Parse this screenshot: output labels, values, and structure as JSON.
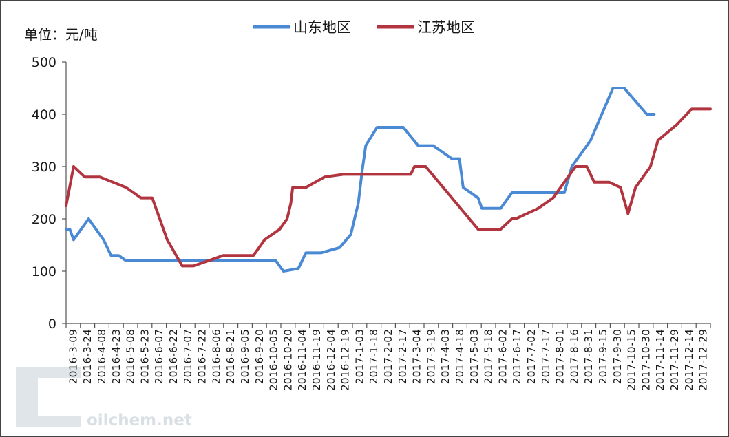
{
  "chart_data": {
    "type": "line",
    "ylabel": "单位：元/吨",
    "ylim": [
      0,
      500
    ],
    "y_ticks": [
      0,
      100,
      200,
      300,
      400,
      500
    ],
    "grid": false,
    "legend_position": "top-center",
    "x_tick_labels": [
      "2016-3-09",
      "2016-3-24",
      "2016-4-08",
      "2016-4-23",
      "2016-5-08",
      "2016-5-23",
      "2016-6-07",
      "2016-6-22",
      "2016-7-07",
      "2016-7-22",
      "2016-8-06",
      "2016-8-21",
      "2016-9-05",
      "2016-9-20",
      "2016-10-05",
      "2016-10-20",
      "2016-11-04",
      "2016-11-19",
      "2016-12-04",
      "2016-12-19",
      "2017-1-03",
      "2017-1-18",
      "2017-2-02",
      "2017-2-17",
      "2017-3-04",
      "2017-3-19",
      "2017-4-03",
      "2017-4-18",
      "2017-5-03",
      "2017-5-18",
      "2017-6-02",
      "2017-6-17",
      "2017-7-02",
      "2017-7-17",
      "2017-8-01",
      "2017-8-16",
      "2017-8-31",
      "2017-9-15",
      "2017-9-30",
      "2017-10-15",
      "2017-10-30",
      "2017-11-14",
      "2017-11-29",
      "2017-12-14",
      "2017-12-29"
    ],
    "series": [
      {
        "name": "山东地区",
        "color": "#4a8ad4",
        "points": [
          [
            0,
            180
          ],
          [
            1,
            180
          ],
          [
            2,
            160
          ],
          [
            4,
            180
          ],
          [
            6,
            200
          ],
          [
            8,
            180
          ],
          [
            10,
            160
          ],
          [
            12,
            130
          ],
          [
            14,
            130
          ],
          [
            16,
            120
          ],
          [
            22,
            120
          ],
          [
            26,
            120
          ],
          [
            30,
            120
          ],
          [
            36,
            120
          ],
          [
            44,
            120
          ],
          [
            48,
            120
          ],
          [
            52,
            120
          ],
          [
            56,
            120
          ],
          [
            58,
            100
          ],
          [
            62,
            105
          ],
          [
            64,
            135
          ],
          [
            68,
            135
          ],
          [
            73,
            145
          ],
          [
            76,
            170
          ],
          [
            78,
            230
          ],
          [
            79,
            290
          ],
          [
            80,
            340
          ],
          [
            83,
            375
          ],
          [
            86,
            375
          ],
          [
            90,
            375
          ],
          [
            94,
            340
          ],
          [
            98,
            340
          ],
          [
            103,
            315
          ],
          [
            105,
            315
          ],
          [
            106,
            260
          ],
          [
            109,
            245
          ],
          [
            110,
            240
          ],
          [
            111,
            220
          ],
          [
            116,
            220
          ],
          [
            119,
            250
          ],
          [
            125,
            250
          ],
          [
            133,
            250
          ],
          [
            135,
            300
          ],
          [
            140,
            350
          ],
          [
            146,
            450
          ],
          [
            149,
            450
          ],
          [
            155,
            400
          ],
          [
            157,
            400
          ]
        ]
      },
      {
        "name": "江苏地区",
        "color": "#b2343f",
        "points": [
          [
            0,
            225
          ],
          [
            2,
            300
          ],
          [
            5,
            280
          ],
          [
            9,
            280
          ],
          [
            16,
            260
          ],
          [
            20,
            240
          ],
          [
            23,
            240
          ],
          [
            27,
            160
          ],
          [
            31,
            110
          ],
          [
            34,
            110
          ],
          [
            42,
            130
          ],
          [
            50,
            130
          ],
          [
            53,
            160
          ],
          [
            57,
            180
          ],
          [
            59,
            200
          ],
          [
            60,
            230
          ],
          [
            60.5,
            260
          ],
          [
            64,
            260
          ],
          [
            69,
            280
          ],
          [
            74,
            285
          ],
          [
            92,
            285
          ],
          [
            93,
            300
          ],
          [
            96,
            300
          ],
          [
            110,
            180
          ],
          [
            112,
            180
          ],
          [
            116,
            180
          ],
          [
            119,
            200
          ],
          [
            120,
            200
          ],
          [
            126,
            220
          ],
          [
            130,
            240
          ],
          [
            136,
            300
          ],
          [
            139,
            300
          ],
          [
            141,
            270
          ],
          [
            145,
            270
          ],
          [
            148,
            260
          ],
          [
            150,
            210
          ],
          [
            152,
            260
          ],
          [
            156,
            300
          ],
          [
            158,
            350
          ],
          [
            163,
            380
          ],
          [
            167,
            410
          ],
          [
            172,
            410
          ]
        ]
      }
    ]
  },
  "watermark": {
    "url_text": "oilchem.net"
  }
}
